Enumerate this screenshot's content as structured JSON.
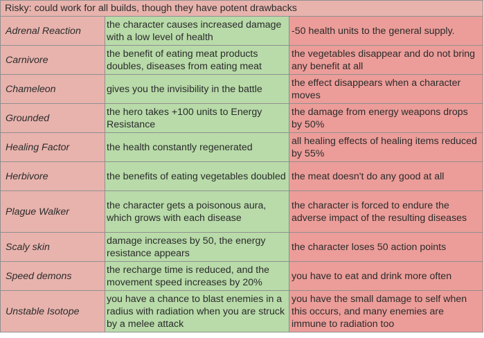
{
  "header": "Risky: could work for all builds, though they have potent drawbacks",
  "rows": [
    {
      "name": "Adrenal Reaction",
      "benefit": "the character causes increased damage with a low level of health",
      "drawback": "-50 health units to the general supply."
    },
    {
      "name": "Carnivore",
      "benefit": "the benefit of eating meat products doubles, diseases from eating meat",
      "drawback": "the vegetables disappear and do not bring any benefit at all"
    },
    {
      "name": "Chameleon",
      "benefit": "gives you the invisibility in the battle",
      "drawback": "the effect disappears when a character moves"
    },
    {
      "name": "Grounded",
      "benefit": "the hero takes +100 units to Energy Resistance",
      "drawback": "the damage from energy weapons drops by 50%"
    },
    {
      "name": "Healing Factor",
      "benefit": "the health constantly regenerated",
      "drawback": "all healing effects of healing items reduced by 55%"
    },
    {
      "name": "Herbivore",
      "benefit": "the benefits of eating vegetables doubled",
      "drawback": "the meat doesn't do any good at all"
    },
    {
      "name": "Plague Walker",
      "benefit": "the character gets a poisonous aura, which grows with each disease",
      "drawback": "the character is forced to endure the adverse impact of the resulting diseases"
    },
    {
      "name": "Scaly skin",
      "benefit": "damage increases by 50, the energy resistance appears",
      "drawback": "the character loses 50 action points"
    },
    {
      "name": "Speed demons",
      "benefit": "the recharge time is reduced, and the movement speed increases by 20%",
      "drawback": "you have to eat and drink more often"
    },
    {
      "name": "Unstable Isotope",
      "benefit": "you have a chance to blast enemies in a radius with radiation when you are struck by a melee attack",
      "drawback": "you have the small damage to self when this occurs, and many enemies are immune to radiation too"
    }
  ],
  "colors": {
    "header_bg": "#e8b3ad",
    "name_bg": "#e8b3ad",
    "benefit_bg": "#b8dba9",
    "drawback_bg": "#ec9d99",
    "border": "#8f8f8f"
  }
}
